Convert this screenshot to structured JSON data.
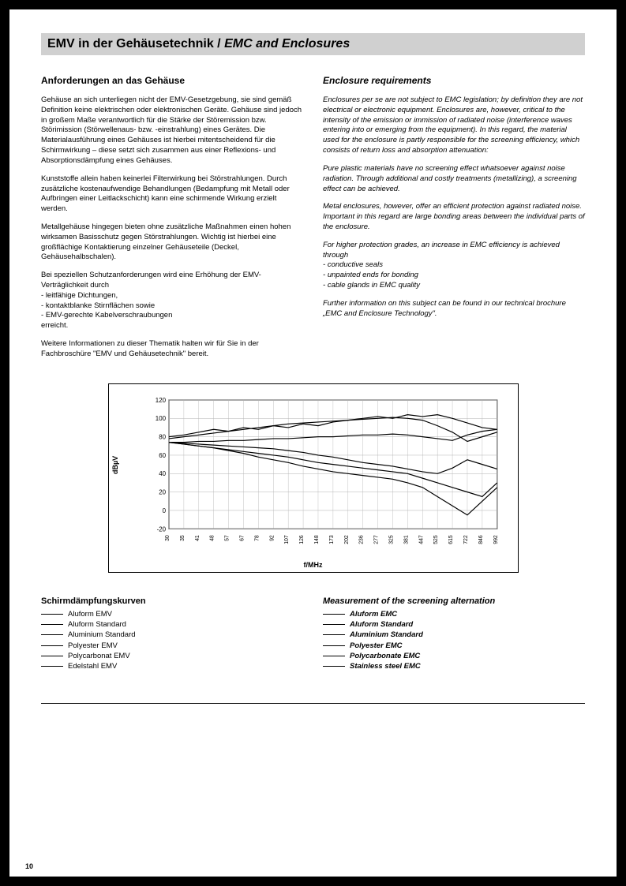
{
  "header": {
    "title_de": "EMV in der Gehäusetechnik",
    "title_sep": " / ",
    "title_en": "EMC and Enclosures"
  },
  "left": {
    "heading": "Anforderungen an das Gehäuse",
    "p1": "Gehäuse an sich unterliegen nicht der EMV-Gesetzgebung, sie sind gemäß Definition keine elektrischen oder elektronischen Geräte. Gehäuse sind jedoch in großem Maße verantwortlich für die Stärke der Störemission bzw. Störimission (Störwellenaus- bzw. -einstrahlung) eines Gerätes.\nDie Materialausführung eines Gehäuses ist hierbei mitentscheidend für die Schirmwirkung – diese setzt sich zusammen aus einer Reflexions- und Absorptionsdämpfung eines Gehäuses.",
    "p2": "Kunststoffe allein haben keinerlei Filterwirkung bei Störstrahlungen. Durch zusätzliche kostenaufwendige Behandlungen (Bedampfung mit Metall oder Aufbringen einer Leitlackschicht) kann eine schirmende Wirkung erzielt werden.",
    "p3": "Metallgehäuse hingegen bieten ohne zusätzliche Maßnahmen einen hohen wirksamen Basisschutz gegen Störstrahlungen. Wichtig ist hierbei eine großflächige Kontaktierung einzelner Gehäuseteile (Deckel, Gehäusehalbschalen).",
    "p4": "Bei speziellen Schutzanforderungen wird eine Erhöhung der EMV-Verträglichkeit durch",
    "bullets": [
      "leitfähige Dichtungen,",
      "kontaktblanke Stirnflächen sowie",
      "EMV-gerechte Kabelverschraubungen"
    ],
    "p5": "erreicht.",
    "p6": "Weitere Informationen zu dieser Thematik halten wir für Sie in der Fachbroschüre \"EMV und Gehäusetechnik\" bereit."
  },
  "right": {
    "heading": "Enclosure requirements",
    "p1": "Enclosures per se are not subject to EMC legislation; by definition they are not electrical or electronic equipment.\nEnclosures are, however, critical to the intensity of the emission or immission of radiated noise (interference waves entering into or emerging from the equipment).\nIn this regard, the material used for the enclosure is partly responsible for the screening efficiency, which consists of return loss and absorption attenuation:",
    "p2": "Pure plastic materials have no screening effect whatsoever against noise radiation. Through additional and costly treatments (metallizing), a screening effect can be achieved.",
    "p3": "Metal enclosures, however, offer an efficient protection against radiated noise. Important in this regard are large bonding areas between the individual parts of the enclosure.",
    "p4": "For higher protection grades, an increase in EMC efficiency is achieved through",
    "bullets": [
      "conductive seals",
      "unpainted ends for bonding",
      "cable glands in EMC quality"
    ],
    "p5": "Further information on this subject can be found in our technical brochure „EMC and Enclosure Technology\"."
  },
  "chart": {
    "type": "line",
    "ylabel": "dBµV",
    "xlabel": "f/MHz",
    "ylim": [
      -20,
      120
    ],
    "yticks": [
      -20,
      0,
      20,
      40,
      60,
      80,
      100,
      120
    ],
    "xticks": [
      "30",
      "35",
      "41",
      "48",
      "57",
      "67",
      "78",
      "92",
      "107",
      "126",
      "148",
      "173",
      "202",
      "236",
      "277",
      "325",
      "381",
      "447",
      "525",
      "615",
      "722",
      "846",
      "992"
    ],
    "background_color": "#ffffff",
    "grid_color": "#b0b0b0",
    "line_color": "#000000",
    "line_width": 1.2,
    "series": [
      {
        "name": "Aluform EMV",
        "values": [
          80,
          82,
          85,
          88,
          86,
          90,
          88,
          92,
          90,
          94,
          92,
          96,
          98,
          100,
          102,
          100,
          104,
          102,
          104,
          100,
          95,
          90,
          88
        ]
      },
      {
        "name": "Aluform Standard",
        "values": [
          74,
          74,
          75,
          75,
          76,
          76,
          77,
          78,
          78,
          79,
          80,
          80,
          81,
          82,
          82,
          83,
          82,
          80,
          78,
          76,
          82,
          86,
          88
        ]
      },
      {
        "name": "Aluminium Standard",
        "values": [
          74,
          73,
          72,
          71,
          70,
          69,
          68,
          67,
          65,
          63,
          60,
          58,
          55,
          52,
          50,
          48,
          45,
          42,
          40,
          46,
          55,
          50,
          45
        ]
      },
      {
        "name": "Polyester EMV",
        "values": [
          74,
          72,
          70,
          68,
          66,
          64,
          62,
          60,
          58,
          55,
          52,
          50,
          48,
          46,
          44,
          42,
          40,
          35,
          30,
          25,
          20,
          15,
          30
        ]
      },
      {
        "name": "Polycarbonat EMV",
        "values": [
          74,
          72,
          70,
          68,
          65,
          62,
          58,
          55,
          52,
          48,
          45,
          42,
          40,
          38,
          36,
          34,
          30,
          25,
          15,
          5,
          -5,
          10,
          25
        ]
      },
      {
        "name": "Edelstahl EMV",
        "values": [
          78,
          80,
          82,
          84,
          86,
          88,
          90,
          92,
          94,
          95,
          96,
          97,
          98,
          99,
          100,
          101,
          100,
          98,
          92,
          85,
          75,
          80,
          85
        ]
      }
    ]
  },
  "legend_left": {
    "heading": "Schirmdämpfungskurven",
    "items": [
      "Aluform EMV",
      "Aluform Standard",
      "Aluminium Standard",
      "Polyester EMV",
      "Polycarbonat EMV",
      "Edelstahl EMV"
    ]
  },
  "legend_right": {
    "heading": "Measurement of the screening alternation",
    "items": [
      "Aluform EMC",
      "Aluform Standard",
      "Aluminium Standard",
      "Polyester EMC",
      "Polycarbonate EMC",
      "Stainless steel EMC"
    ]
  },
  "page_number": "10"
}
